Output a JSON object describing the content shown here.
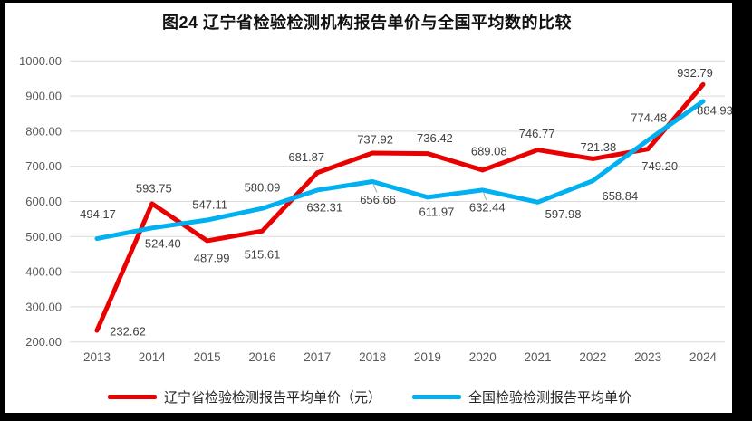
{
  "page": {
    "title": "图24 辽宁省检验检测机构报告单价与全国平均数的比较"
  },
  "chart_data": {
    "type": "line",
    "title": "图24 辽宁省检验检测机构报告单价与全国平均数的比较",
    "categories": [
      "2013",
      "2014",
      "2015",
      "2016",
      "2017",
      "2018",
      "2019",
      "2020",
      "2021",
      "2022",
      "2023",
      "2024"
    ],
    "series": [
      {
        "name": "辽宁省检验检测报告平均单价（元）",
        "color": "#e90000",
        "values": [
          232.62,
          593.75,
          487.99,
          515.61,
          681.87,
          737.92,
          736.42,
          689.08,
          746.77,
          721.38,
          749.2,
          932.79
        ],
        "label_offsets": [
          [
            34,
            1
          ],
          [
            2,
            -17
          ],
          [
            5,
            19
          ],
          [
            0,
            26
          ],
          [
            -12,
            -17
          ],
          [
            3,
            -15
          ],
          [
            8,
            -17
          ],
          [
            7,
            -21
          ],
          [
            -1,
            -18
          ],
          [
            6,
            -13
          ],
          [
            13,
            19
          ],
          [
            -9,
            -13
          ]
        ],
        "leader_points": []
      },
      {
        "name": "全国检验检测报告平均单价",
        "color": "#00b0f0",
        "values": [
          494.17,
          524.4,
          547.11,
          580.09,
          632.31,
          656.66,
          611.97,
          632.44,
          597.98,
          658.84,
          774.48,
          884.93
        ],
        "label_offsets": [
          [
            1,
            -27
          ],
          [
            12,
            17
          ],
          [
            3,
            -17
          ],
          [
            0,
            -23
          ],
          [
            8,
            19
          ],
          [
            6,
            20
          ],
          [
            10,
            16
          ],
          [
            5,
            19
          ],
          [
            28,
            13
          ],
          [
            30,
            17
          ],
          [
            1,
            -25
          ],
          [
            13,
            10
          ]
        ],
        "leader_points": [
          5,
          7
        ]
      }
    ],
    "ylim": [
      200,
      1000
    ],
    "ytick_step": 100,
    "ytick_labels": [
      "200.00",
      "300.00",
      "400.00",
      "500.00",
      "600.00",
      "700.00",
      "800.00",
      "900.00",
      "1000.00"
    ],
    "value_format_decimals": 2,
    "grid": "horizontal",
    "gridline_color": "#d9d9d9",
    "tick_label_color": "#595959",
    "data_label_color": "#404040",
    "legend_position": "bottom"
  }
}
